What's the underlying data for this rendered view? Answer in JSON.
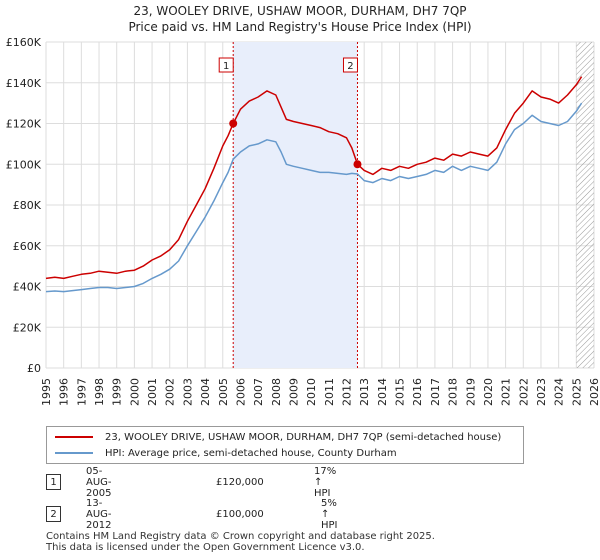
{
  "title": {
    "line1": "23, WOOLEY DRIVE, USHAW MOOR, DURHAM, DH7 7QP",
    "line2": "Price paid vs. HM Land Registry's House Price Index (HPI)"
  },
  "colors": {
    "price": "#cc0000",
    "hpi": "#6699cc",
    "shade": "#e8eefb",
    "grid": "#dddddd"
  },
  "chart_data": {
    "type": "line",
    "title": "Price paid vs. HM Land Registry's House Price Index (HPI)",
    "xlabel": "",
    "ylabel": "",
    "xlim": [
      1995,
      2026
    ],
    "ylim": [
      0,
      160000
    ],
    "yticks": [
      0,
      20000,
      40000,
      60000,
      80000,
      100000,
      120000,
      140000,
      160000
    ],
    "ytick_labels": [
      "£0",
      "£20K",
      "£40K",
      "£60K",
      "£80K",
      "£100K",
      "£120K",
      "£140K",
      "£160K"
    ],
    "xticks": [
      1995,
      1996,
      1997,
      1998,
      1999,
      2000,
      2001,
      2002,
      2003,
      2004,
      2005,
      2006,
      2007,
      2008,
      2009,
      2010,
      2011,
      2012,
      2013,
      2014,
      2015,
      2016,
      2017,
      2018,
      2019,
      2020,
      2021,
      2022,
      2023,
      2024,
      2025,
      2026
    ],
    "shaded_region": [
      2005.59,
      2012.62
    ],
    "hatched_from": 2025.0,
    "series": [
      {
        "name": "23, WOOLEY DRIVE, USHAW MOOR, DURHAM, DH7 7QP (semi-detached house)",
        "color": "#cc0000",
        "x": [
          1995,
          1995.5,
          1996,
          1996.5,
          1997,
          1997.5,
          1998,
          1998.5,
          1999,
          1999.5,
          2000,
          2000.5,
          2001,
          2001.5,
          2002,
          2002.5,
          2003,
          2003.5,
          2004,
          2004.5,
          2005,
          2005.3,
          2005.59,
          2006,
          2006.5,
          2007,
          2007.5,
          2008,
          2008.3,
          2008.6,
          2009,
          2009.5,
          2010,
          2010.5,
          2011,
          2011.5,
          2012,
          2012.3,
          2012.62,
          2013,
          2013.5,
          2014,
          2014.5,
          2015,
          2015.5,
          2016,
          2016.5,
          2017,
          2017.5,
          2018,
          2018.5,
          2019,
          2019.5,
          2020,
          2020.5,
          2021,
          2021.5,
          2022,
          2022.5,
          2023,
          2023.5,
          2024,
          2024.5,
          2025,
          2025.3
        ],
        "values": [
          44000,
          44500,
          44000,
          45000,
          46000,
          46500,
          47500,
          47000,
          46500,
          47500,
          48000,
          50000,
          53000,
          55000,
          58000,
          63000,
          72000,
          80000,
          88000,
          98000,
          109000,
          114000,
          120000,
          127000,
          131000,
          133000,
          136000,
          134000,
          128000,
          122000,
          121000,
          120000,
          119000,
          118000,
          116000,
          115000,
          113000,
          108000,
          100000,
          97000,
          95000,
          98000,
          97000,
          99000,
          98000,
          100000,
          101000,
          103000,
          102000,
          105000,
          104000,
          106000,
          105000,
          104000,
          108000,
          117000,
          125000,
          130000,
          136000,
          133000,
          132000,
          130000,
          134000,
          139000,
          143000
        ]
      },
      {
        "name": "HPI: Average price, semi-detached house, County Durham",
        "color": "#6699cc",
        "x": [
          1995,
          1995.5,
          1996,
          1996.5,
          1997,
          1997.5,
          1998,
          1998.5,
          1999,
          1999.5,
          2000,
          2000.5,
          2001,
          2001.5,
          2002,
          2002.5,
          2003,
          2003.5,
          2004,
          2004.5,
          2005,
          2005.3,
          2005.59,
          2006,
          2006.5,
          2007,
          2007.5,
          2008,
          2008.3,
          2008.6,
          2009,
          2009.5,
          2010,
          2010.5,
          2011,
          2011.5,
          2012,
          2012.3,
          2012.62,
          2013,
          2013.5,
          2014,
          2014.5,
          2015,
          2015.5,
          2016,
          2016.5,
          2017,
          2017.5,
          2018,
          2018.5,
          2019,
          2019.5,
          2020,
          2020.5,
          2021,
          2021.5,
          2022,
          2022.5,
          2023,
          2023.5,
          2024,
          2024.5,
          2025,
          2025.3
        ],
        "values": [
          37500,
          37800,
          37500,
          38000,
          38500,
          39000,
          39500,
          39500,
          39000,
          39500,
          40000,
          41500,
          44000,
          46000,
          48500,
          52500,
          60000,
          67000,
          74000,
          82000,
          91000,
          96000,
          102500,
          106000,
          109000,
          110000,
          112000,
          111000,
          106000,
          100000,
          99000,
          98000,
          97000,
          96000,
          96000,
          95500,
          95000,
          95500,
          95200,
          92000,
          91000,
          93000,
          92000,
          94000,
          93000,
          94000,
          95000,
          97000,
          96000,
          99000,
          97000,
          99000,
          98000,
          97000,
          101000,
          110000,
          117000,
          120000,
          124000,
          121000,
          120000,
          119000,
          121000,
          126000,
          130000
        ]
      }
    ],
    "transactions": [
      {
        "id": "1",
        "x": 2005.59,
        "value": 120000,
        "date": "05-AUG-2005",
        "price": "£120,000",
        "hpi": "17% ↑ HPI"
      },
      {
        "id": "2",
        "x": 2012.62,
        "value": 100000,
        "date": "13-AUG-2012",
        "price": "£100,000",
        "hpi": "5% ↑ HPI"
      }
    ]
  },
  "legend": {
    "price_label": "23, WOOLEY DRIVE, USHAW MOOR, DURHAM, DH7 7QP (semi-detached house)",
    "hpi_label": "HPI: Average price, semi-detached house, County Durham"
  },
  "footer": {
    "line1": "Contains HM Land Registry data © Crown copyright and database right 2025.",
    "line2": "This data is licensed under the Open Government Licence v3.0."
  }
}
